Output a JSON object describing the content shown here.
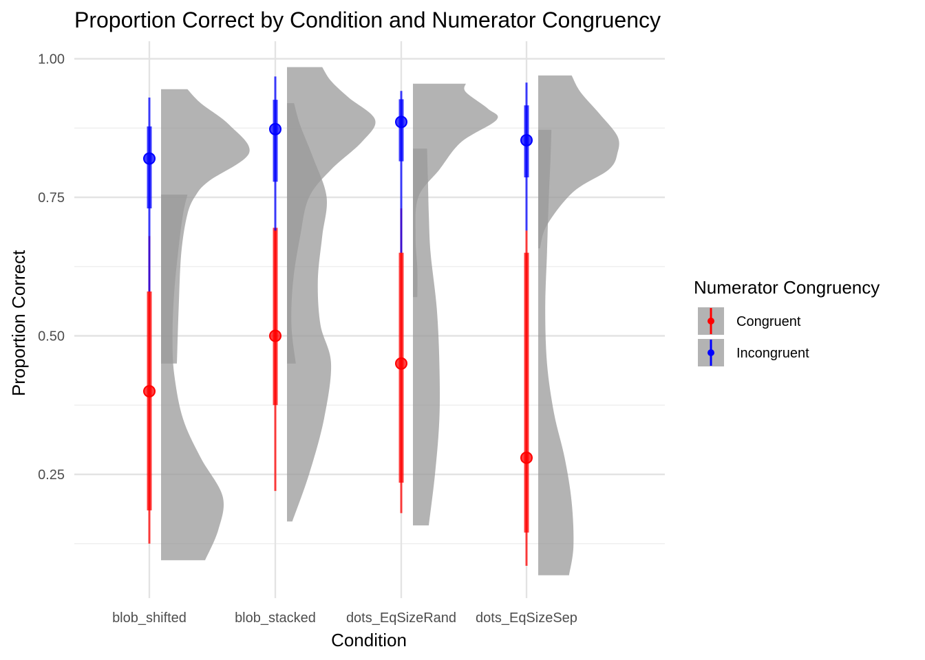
{
  "chart_data": {
    "type": "raincloud",
    "title": "Proportion Correct by Condition and Numerator Congruency",
    "xlabel": "Condition",
    "ylabel": "Proportion Correct",
    "categories": [
      "blob_shifted",
      "blob_stacked",
      "dots_EqSizeRand",
      "dots_EqSizeSep"
    ],
    "ylim": [
      0.03,
      1.03
    ],
    "yticks": [
      0.25,
      0.5,
      0.75,
      1.0
    ],
    "ytick_labels": [
      "0.25",
      "0.50",
      "0.75",
      "1.00"
    ],
    "grid": true,
    "legend": {
      "title": "Numerator Congruency",
      "position": "right",
      "entries": [
        {
          "label": "Congruent",
          "color": "#ff0000"
        },
        {
          "label": "Incongruent",
          "color": "#0000ff"
        }
      ]
    },
    "series": [
      {
        "name": "Congruent",
        "color": "#ff0000",
        "median": [
          0.4,
          0.5,
          0.45,
          0.28
        ],
        "interval_66": [
          [
            0.185,
            0.58
          ],
          [
            0.375,
            0.695
          ],
          [
            0.235,
            0.65
          ],
          [
            0.145,
            0.65
          ]
        ],
        "interval_95": [
          [
            0.125,
            0.68
          ],
          [
            0.22,
            0.695
          ],
          [
            0.18,
            0.73
          ],
          [
            0.085,
            0.69
          ]
        ]
      },
      {
        "name": "Incongruent",
        "color": "#0000ff",
        "median": [
          0.82,
          0.873,
          0.886,
          0.853
        ],
        "interval_66": [
          [
            0.73,
            0.878
          ],
          [
            0.778,
            0.926
          ],
          [
            0.815,
            0.927
          ],
          [
            0.786,
            0.916
          ]
        ],
        "interval_95": [
          [
            0.58,
            0.93
          ],
          [
            0.69,
            0.968
          ],
          [
            0.65,
            0.942
          ],
          [
            0.69,
            0.957
          ]
        ]
      }
    ],
    "densities": [
      {
        "condition": "blob_shifted",
        "group": "Incongruent",
        "range": [
          0.45,
          0.945
        ],
        "y": [
          0.45,
          0.55,
          0.65,
          0.72,
          0.755,
          0.78,
          0.83,
          0.88,
          0.92,
          0.945
        ],
        "w": [
          0.18,
          0.2,
          0.23,
          0.3,
          0.4,
          0.55,
          1.0,
          0.78,
          0.45,
          0.3
        ]
      },
      {
        "condition": "blob_shifted",
        "group": "Congruent",
        "range": [
          0.095,
          0.755
        ],
        "y": [
          0.095,
          0.15,
          0.21,
          0.28,
          0.35,
          0.43,
          0.5,
          0.58,
          0.66,
          0.72,
          0.755
        ],
        "w": [
          0.5,
          0.65,
          0.7,
          0.45,
          0.25,
          0.15,
          0.13,
          0.15,
          0.2,
          0.25,
          0.3
        ]
      },
      {
        "condition": "blob_stacked",
        "group": "Incongruent",
        "range": [
          0.45,
          0.985
        ],
        "y": [
          0.45,
          0.52,
          0.6,
          0.68,
          0.75,
          0.8,
          0.85,
          0.89,
          0.93,
          0.96,
          0.985
        ],
        "w": [
          0.1,
          0.05,
          0.07,
          0.15,
          0.25,
          0.5,
          0.85,
          1.0,
          0.7,
          0.5,
          0.4
        ]
      },
      {
        "condition": "blob_stacked",
        "group": "Congruent",
        "range": [
          0.165,
          0.92
        ],
        "y": [
          0.165,
          0.25,
          0.35,
          0.45,
          0.52,
          0.6,
          0.68,
          0.75,
          0.82,
          0.88,
          0.92
        ],
        "w": [
          0.06,
          0.25,
          0.42,
          0.5,
          0.38,
          0.35,
          0.4,
          0.45,
          0.3,
          0.15,
          0.08
        ]
      },
      {
        "condition": "dots_EqSizeRand",
        "group": "Incongruent",
        "range": [
          0.57,
          0.955
        ],
        "y": [
          0.57,
          0.62,
          0.68,
          0.75,
          0.8,
          0.85,
          0.89,
          0.91,
          0.94,
          0.955
        ],
        "w": [
          0.05,
          0.05,
          0.03,
          0.06,
          0.3,
          0.55,
          0.95,
          0.85,
          0.6,
          0.6
        ]
      },
      {
        "condition": "dots_EqSizeRand",
        "group": "Congruent",
        "range": [
          0.158,
          0.838
        ],
        "y": [
          0.158,
          0.25,
          0.35,
          0.45,
          0.55,
          0.65,
          0.72,
          0.78,
          0.838
        ],
        "w": [
          0.18,
          0.25,
          0.3,
          0.3,
          0.27,
          0.2,
          0.18,
          0.17,
          0.16
        ]
      },
      {
        "condition": "dots_EqSizeSep",
        "group": "Incongruent",
        "range": [
          0.658,
          0.97
        ],
        "y": [
          0.658,
          0.7,
          0.76,
          0.8,
          0.83,
          0.86,
          0.9,
          0.94,
          0.97
        ],
        "w": [
          0.02,
          0.1,
          0.4,
          0.8,
          0.9,
          0.9,
          0.7,
          0.48,
          0.38
        ]
      },
      {
        "condition": "dots_EqSizeSep",
        "group": "Congruent",
        "range": [
          0.068,
          0.872
        ],
        "y": [
          0.068,
          0.12,
          0.2,
          0.28,
          0.36,
          0.45,
          0.55,
          0.65,
          0.75,
          0.82,
          0.872
        ],
        "w": [
          0.35,
          0.4,
          0.38,
          0.3,
          0.18,
          0.1,
          0.08,
          0.1,
          0.12,
          0.14,
          0.15
        ]
      }
    ]
  }
}
